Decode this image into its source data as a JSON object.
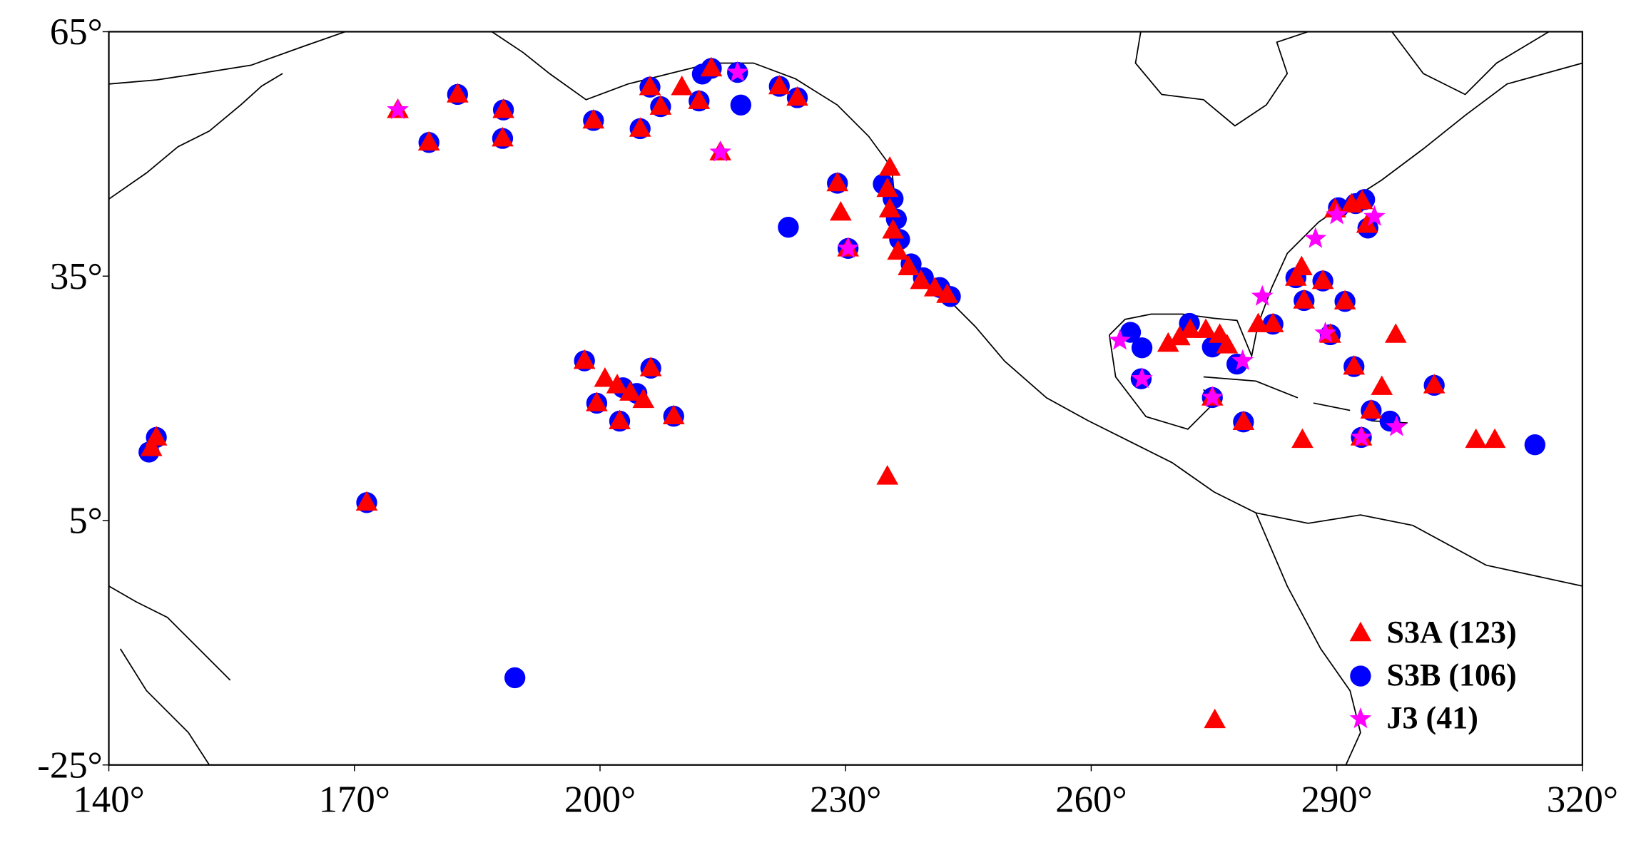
{
  "chart_data": {
    "type": "scatter",
    "xlim": [
      140,
      320
    ],
    "ylim": [
      -25,
      65
    ],
    "xticks": [
      {
        "value": 140,
        "label": "140°"
      },
      {
        "value": 170,
        "label": "170°"
      },
      {
        "value": 200,
        "label": "200°"
      },
      {
        "value": 230,
        "label": "230°"
      },
      {
        "value": 260,
        "label": "260°"
      },
      {
        "value": 290,
        "label": "290°"
      },
      {
        "value": 320,
        "label": "320°"
      }
    ],
    "yticks": [
      {
        "value": -25,
        "label": "-25°"
      },
      {
        "value": 5,
        "label": "5°"
      },
      {
        "value": 35,
        "label": "35°"
      },
      {
        "value": 65,
        "label": "65°"
      }
    ],
    "legend": "lower right",
    "series": [
      {
        "name": "S3A (123)",
        "color": "#ff0000",
        "marker": "triangle",
        "x": [
          175.3,
          182.6,
          188.2,
          188.1,
          179.1,
          199.2,
          204.9,
          206.1,
          207.4,
          210,
          212.1,
          213.6,
          214.7,
          221.9,
          224.1,
          229,
          229.4,
          230.3,
          235.4,
          235.1,
          235.4,
          235.8,
          236.4,
          237.7,
          239.2,
          240.9,
          242.4,
          198.1,
          200.6,
          202.1,
          203.7,
          205.3,
          206.2,
          199.6,
          202.4,
          209,
          145.2,
          145.8,
          171.5,
          235.1,
          275.1,
          269.4,
          270.8,
          272.1,
          274,
          275.7,
          276.6,
          280.4,
          282.2,
          274.8,
          278.6,
          285.7,
          285,
          286,
          288.3,
          291,
          289.2,
          292.1,
          295.5,
          294.2,
          293,
          297.2,
          301.9,
          285.8,
          307,
          309.3,
          289.8,
          291.8,
          293.1,
          293.7
        ],
        "y": [
          55.4,
          57.3,
          55.4,
          51.9,
          51.4,
          54.1,
          53.1,
          58.2,
          55.8,
          58.2,
          56.5,
          60.5,
          50.2,
          58.3,
          56.9,
          46.4,
          42.8,
          38.4,
          48.3,
          45.7,
          43.2,
          40.6,
          38,
          36.1,
          34.4,
          33.5,
          32.7,
          24.6,
          22.4,
          21.6,
          20.7,
          19.8,
          23.7,
          19.4,
          17.2,
          17.8,
          13.9,
          15.2,
          7.2,
          10.4,
          -19.5,
          26.7,
          27.5,
          28.4,
          28.4,
          27.8,
          26.5,
          29.1,
          29.1,
          20.1,
          17.1,
          36.1,
          34.8,
          32,
          34.4,
          31.9,
          27.8,
          23.9,
          21.4,
          18.5,
          15.2,
          27.8,
          21.6,
          14.9,
          14.9,
          14.9,
          43.2,
          43.8,
          44.2,
          41.3
        ]
      },
      {
        "name": "S3B (106)",
        "color": "#0000ff",
        "marker": "circle",
        "x": [
          182.6,
          188.2,
          188.1,
          179.1,
          199.2,
          204.9,
          206.1,
          207.4,
          212.1,
          213.6,
          212.5,
          216.8,
          217.2,
          221.9,
          224.1,
          229,
          230.3,
          223,
          234.6,
          235.8,
          236.2,
          236.6,
          238,
          239.5,
          241.5,
          242.8,
          198.1,
          202.8,
          204.5,
          206.2,
          199.6,
          202.4,
          209,
          144.9,
          145.8,
          171.5,
          189.6,
          314.2,
          264.8,
          266.2,
          266.1,
          272,
          274.8,
          277.8,
          274.8,
          278.6,
          282.2,
          285,
          286,
          288.3,
          291,
          289.2,
          292.1,
          294.2,
          293,
          296.5,
          301.9,
          290.2,
          292.3,
          293.4,
          293.8
        ],
        "y": [
          57.3,
          55.4,
          51.9,
          51.4,
          54.1,
          53.1,
          58.2,
          55.8,
          56.5,
          60.5,
          59.8,
          60,
          56,
          58.3,
          56.9,
          46.4,
          38.4,
          41,
          46.3,
          44.5,
          42,
          39.5,
          36.5,
          34.8,
          33.6,
          32.5,
          24.6,
          21.3,
          20.6,
          23.7,
          19.4,
          17.2,
          17.8,
          13.4,
          15.2,
          7.2,
          -14.3,
          14.3,
          28.1,
          26.2,
          22.4,
          29.2,
          26.3,
          24.2,
          20.1,
          17.1,
          29.1,
          34.8,
          32,
          34.4,
          31.9,
          27.8,
          23.9,
          18.5,
          15.2,
          17.2,
          21.6,
          43.4,
          43.9,
          44.4,
          40.9
        ]
      },
      {
        "name": "J3 (41)",
        "color": "#ff00ff",
        "marker": "star",
        "x": [
          216.8,
          175.3,
          214.7,
          230.3,
          263.5,
          266.2,
          274.8,
          278.5,
          280.9,
          287.4,
          290,
          294.6,
          297.3,
          293,
          288.6
        ],
        "y": [
          60,
          55.4,
          50.2,
          38.4,
          27.1,
          22.4,
          20.1,
          24.6,
          32.5,
          39.6,
          42.5,
          42.3,
          16.5,
          15.2,
          28
        ]
      }
    ]
  }
}
